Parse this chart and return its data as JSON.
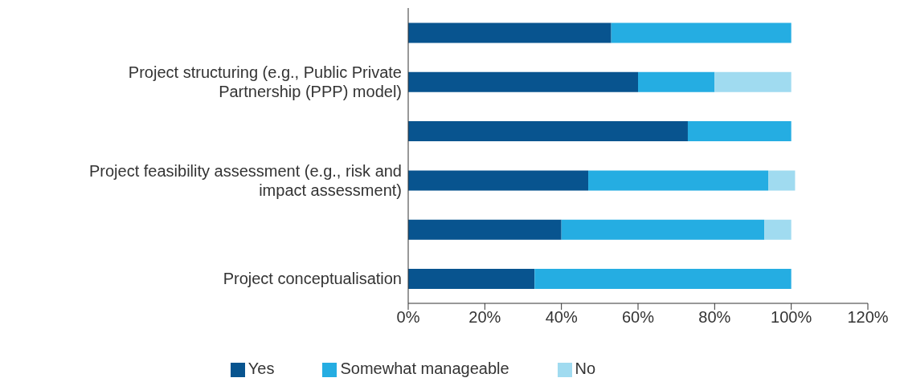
{
  "chart_data": {
    "type": "bar",
    "orientation": "horizontal",
    "stacked": true,
    "categories": [
      null,
      "Project structuring (e.g., Public Private Partnership (PPP) model)",
      null,
      "Project feasibility assessment (e.g., risk and impact assessment)",
      null,
      "Project conceptualisation"
    ],
    "series": [
      {
        "name": "Yes",
        "color": "#08548f",
        "values": [
          53,
          60,
          73,
          47,
          40,
          33
        ]
      },
      {
        "name": "Somewhat manageable",
        "color": "#25ade2",
        "values": [
          47,
          20,
          27,
          47,
          53,
          67
        ]
      },
      {
        "name": "No",
        "color": "#a0dbf0",
        "values": [
          0,
          20,
          0,
          7,
          7,
          0
        ]
      }
    ],
    "xlim": [
      0,
      120
    ],
    "xticks": [
      {
        "value": 0,
        "label": "0%"
      },
      {
        "value": 20,
        "label": "20%"
      },
      {
        "value": 40,
        "label": "40%"
      },
      {
        "value": 60,
        "label": "60%"
      },
      {
        "value": 80,
        "label": "80%"
      },
      {
        "value": 100,
        "label": "100%"
      },
      {
        "value": 120,
        "label": "120%"
      }
    ],
    "grid": false,
    "legend": "bottom"
  }
}
